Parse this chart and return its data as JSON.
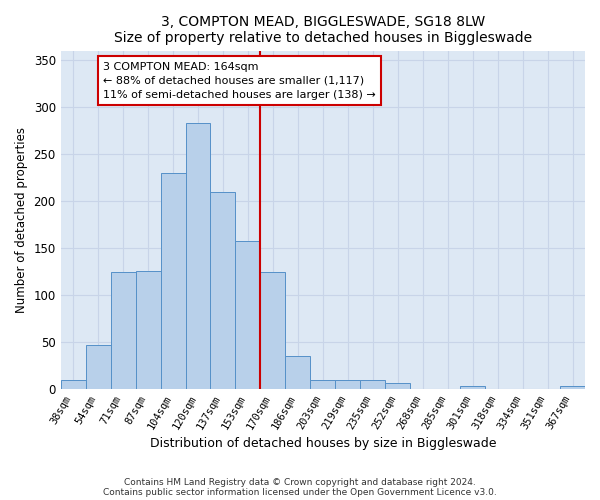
{
  "title": "3, COMPTON MEAD, BIGGLESWADE, SG18 8LW",
  "subtitle": "Size of property relative to detached houses in Biggleswade",
  "xlabel": "Distribution of detached houses by size in Biggleswade",
  "ylabel": "Number of detached properties",
  "bin_labels": [
    "38sqm",
    "54sqm",
    "71sqm",
    "87sqm",
    "104sqm",
    "120sqm",
    "137sqm",
    "153sqm",
    "170sqm",
    "186sqm",
    "203sqm",
    "219sqm",
    "235sqm",
    "252sqm",
    "268sqm",
    "285sqm",
    "301sqm",
    "318sqm",
    "334sqm",
    "351sqm",
    "367sqm"
  ],
  "bar_values": [
    10,
    47,
    125,
    126,
    230,
    283,
    210,
    157,
    125,
    35,
    10,
    10,
    10,
    7,
    0,
    0,
    3,
    0,
    0,
    0,
    3
  ],
  "bar_color": "#b8d0ea",
  "bar_edge_color": "#5590c8",
  "property_line_x": 8.5,
  "property_line_label": "3 COMPTON MEAD: 164sqm",
  "annotation_line1": "← 88% of detached houses are smaller (1,117)",
  "annotation_line2": "11% of semi-detached houses are larger (138) →",
  "annotation_box_color": "#ffffff",
  "annotation_box_edge": "#cc0000",
  "property_line_color": "#cc0000",
  "ylim": [
    0,
    360
  ],
  "yticks": [
    0,
    50,
    100,
    150,
    200,
    250,
    300,
    350
  ],
  "grid_color": "#c8d4e8",
  "background_color": "#dde8f4",
  "footer1": "Contains HM Land Registry data © Crown copyright and database right 2024.",
  "footer2": "Contains public sector information licensed under the Open Government Licence v3.0."
}
